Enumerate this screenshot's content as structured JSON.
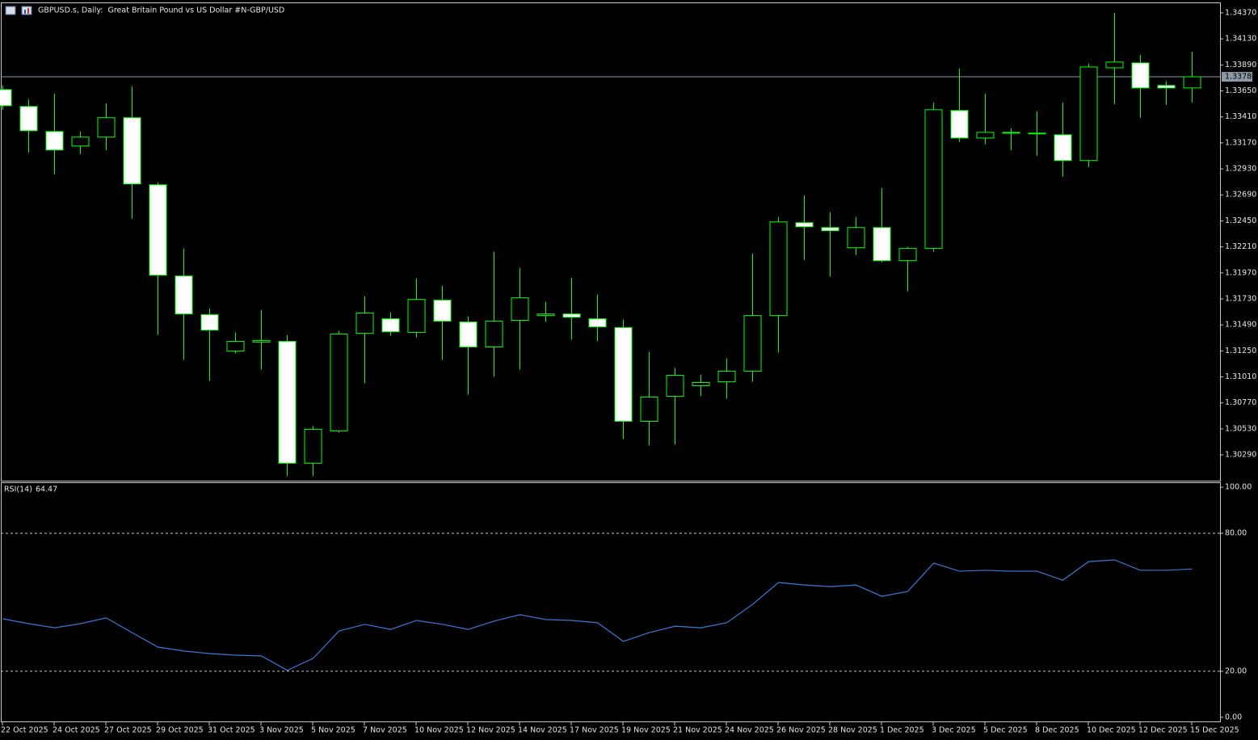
{
  "chart_data": [
    {
      "type": "candlestick",
      "title": "GBPUSD.s, Daily:  Great Britain Pound vs US Dollar #N-GBP/USD",
      "categories": [
        "22 Oct 2025",
        null,
        "24 Oct 2025",
        null,
        "27 Oct 2025",
        null,
        "29 Oct 2025",
        null,
        "31 Oct 2025",
        null,
        "3 Nov 2025",
        null,
        "5 Nov 2025",
        null,
        "7 Nov 2025",
        null,
        "10 Nov 2025",
        null,
        "12 Nov 2025",
        null,
        "14 Nov 2025",
        null,
        "17 Nov 2025",
        null,
        "19 Nov 2025",
        null,
        "21 Nov 2025",
        null,
        "24 Nov 2025",
        null,
        "26 Nov 2025",
        null,
        "28 Nov 2025",
        null,
        "1 Dec 2025",
        null,
        "3 Dec 2025",
        null,
        "5 Dec 2025",
        null,
        "8 Dec 2025",
        null,
        "10 Dec 2025",
        null,
        "12 Dec 2025",
        null,
        "15 Dec 2025"
      ],
      "open": [
        1.33662,
        1.33506,
        1.33275,
        1.33141,
        1.33223,
        1.33402,
        1.32783,
        1.31941,
        1.31584,
        1.31248,
        1.3133,
        1.31338,
        1.30213,
        1.30511,
        1.31412,
        1.31546,
        1.3142,
        1.31718,
        1.31517,
        1.31286,
        1.31532,
        1.31576,
        1.31591,
        1.31546,
        1.31465,
        1.306,
        1.30831,
        1.30928,
        1.30965,
        1.31062,
        1.31576,
        1.32433,
        1.32388,
        1.32202,
        1.32388,
        1.32083,
        1.32195,
        1.33469,
        1.33215,
        1.3326,
        1.33253,
        1.33245,
        1.33007,
        1.33863,
        1.33908,
        1.337,
        1.33677
      ],
      "high": [
        1.337,
        1.33573,
        1.33625,
        1.33275,
        1.33536,
        1.33692,
        1.32806,
        1.32195,
        1.31643,
        1.3142,
        1.31628,
        1.31397,
        1.30556,
        1.31435,
        1.31755,
        1.31606,
        1.31919,
        1.31852,
        1.31569,
        1.32165,
        1.32016,
        1.31703,
        1.31926,
        1.3177,
        1.31539,
        1.31241,
        1.31092,
        1.31032,
        1.31181,
        1.3215,
        1.32485,
        1.32686,
        1.3253,
        1.32485,
        1.32753,
        1.3221,
        1.33543,
        1.33856,
        1.33625,
        1.33305,
        1.33461,
        1.33543,
        1.33901,
        1.3437,
        1.33983,
        1.33737,
        1.34012
      ],
      "low": [
        1.33476,
        1.33081,
        1.3288,
        1.33066,
        1.33104,
        1.3247,
        1.31397,
        1.31167,
        1.30973,
        1.31226,
        1.31077,
        1.30094,
        1.30094,
        1.30496,
        1.3095,
        1.3139,
        1.31375,
        1.31167,
        1.30846,
        1.3101,
        1.31077,
        1.31517,
        1.31353,
        1.31338,
        1.30436,
        1.30377,
        1.30384,
        1.30831,
        1.30809,
        1.30965,
        1.31234,
        1.3209,
        1.31934,
        1.32135,
        1.32068,
        1.318,
        1.32165,
        1.33178,
        1.33156,
        1.33104,
        1.33051,
        1.32858,
        1.32947,
        1.33528,
        1.33402,
        1.33521,
        1.33543
      ],
      "close": [
        1.33513,
        1.33282,
        1.33104,
        1.33223,
        1.33402,
        1.32791,
        1.31949,
        1.31591,
        1.31442,
        1.31338,
        1.31345,
        1.30213,
        1.30526,
        1.31405,
        1.31599,
        1.31427,
        1.31725,
        1.31524,
        1.31286,
        1.31524,
        1.3174,
        1.31591,
        1.31561,
        1.31472,
        1.306,
        1.30824,
        1.31025,
        1.30958,
        1.31062,
        1.31576,
        1.3244,
        1.32396,
        1.32359,
        1.32388,
        1.32083,
        1.32195,
        1.33476,
        1.33215,
        1.33267,
        1.33267,
        1.3326,
        1.33007,
        1.33871,
        1.33916,
        1.33677,
        1.33677,
        1.3378
      ],
      "up_color": "#000000",
      "down_color": "#ffffff",
      "wick_color": "#00ff00",
      "ylim": [
        1.30052,
        1.34459
      ],
      "yticks": [
        {
          "value": 1.3437,
          "label": "1.34370"
        },
        {
          "value": 1.3413,
          "label": "1.34130"
        },
        {
          "value": 1.3389,
          "label": "1.33890"
        },
        {
          "value": 1.3365,
          "label": "1.33650"
        },
        {
          "value": 1.3341,
          "label": "1.33410"
        },
        {
          "value": 1.3317,
          "label": "1.33170"
        },
        {
          "value": 1.3293,
          "label": "1.32930"
        },
        {
          "value": 1.3269,
          "label": "1.32690"
        },
        {
          "value": 1.3245,
          "label": "1.32450"
        },
        {
          "value": 1.3221,
          "label": "1.32210"
        },
        {
          "value": 1.3197,
          "label": "1.31970"
        },
        {
          "value": 1.3173,
          "label": "1.31730"
        },
        {
          "value": 1.3149,
          "label": "1.31490"
        },
        {
          "value": 1.3125,
          "label": "1.31250"
        },
        {
          "value": 1.3101,
          "label": "1.31010"
        },
        {
          "value": 1.3077,
          "label": "1.30770"
        },
        {
          "value": 1.3053,
          "label": "1.30530"
        },
        {
          "value": 1.3029,
          "label": "1.30290"
        }
      ],
      "current_price": {
        "value": 1.3378,
        "label": "1.33780"
      },
      "current_price_color": "#8c9aa6"
    },
    {
      "type": "line",
      "title": "RSI(14)",
      "last_value": 64.47,
      "values": [
        42.8,
        40.7,
        38.9,
        40.7,
        43.2,
        36.8,
        30.5,
        28.8,
        27.7,
        27.0,
        26.7,
        20.4,
        25.6,
        37.5,
        40.4,
        38.2,
        42.1,
        40.4,
        38.2,
        41.8,
        44.6,
        42.5,
        42.1,
        41.1,
        33.0,
        36.8,
        39.6,
        38.9,
        41.1,
        49.1,
        58.6,
        57.5,
        56.8,
        57.5,
        52.6,
        54.7,
        67.0,
        63.5,
        63.9,
        63.5,
        63.5,
        59.6,
        67.7,
        68.4,
        63.9,
        63.9,
        64.47
      ],
      "color": "#3c78d8",
      "ylim": [
        -1.8,
        101.8
      ],
      "yticks": [
        {
          "value": 100,
          "label": "100.00"
        },
        {
          "value": 80,
          "label": "80.00"
        },
        {
          "value": 20,
          "label": "20.00"
        },
        {
          "value": 0,
          "label": "0.00"
        }
      ],
      "levels": [
        80,
        20
      ]
    }
  ]
}
